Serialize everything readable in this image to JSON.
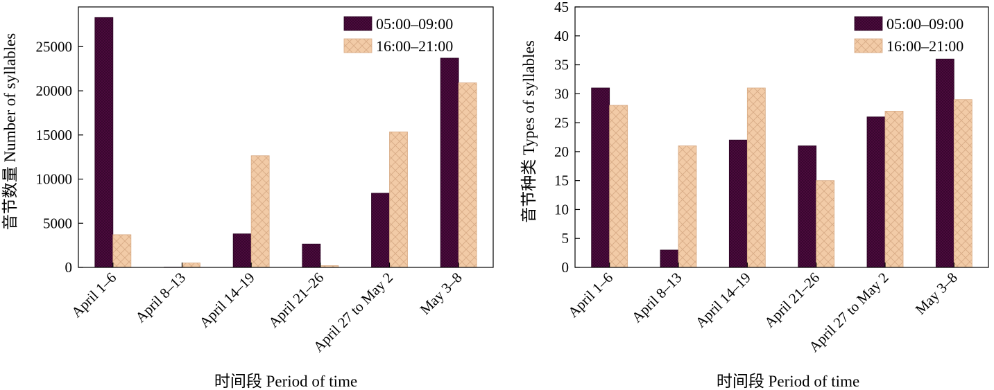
{
  "chart_data": [
    {
      "type": "bar",
      "categories": [
        "April 1–6",
        "April 8–13",
        "April 14–19",
        "April 21–26",
        "April 27 to May 2",
        "May 3–8"
      ],
      "series": [
        {
          "name": "05:00–09:00",
          "values": [
            28300,
            30,
            3800,
            2650,
            8400,
            23700
          ],
          "color": "#4b0a3d"
        },
        {
          "name": "16:00–21:00",
          "values": [
            3700,
            500,
            12650,
            200,
            15350,
            20900
          ],
          "color": "#f2cba7"
        }
      ],
      "xlabel": "时间段 Period of time",
      "ylabel": "音节数量 Number of syllables",
      "ylim": [
        0,
        29500
      ],
      "yticks": [
        0,
        5000,
        10000,
        15000,
        20000,
        25000
      ],
      "legend": "top-right",
      "grid": false
    },
    {
      "type": "bar",
      "categories": [
        "April 1–6",
        "April 8–13",
        "April 14–19",
        "April 21–26",
        "April 27 to May 2",
        "May 3–8"
      ],
      "series": [
        {
          "name": "05:00–09:00",
          "values": [
            31,
            3,
            22,
            21,
            26,
            36
          ],
          "color": "#4b0a3d"
        },
        {
          "name": "16:00–21:00",
          "values": [
            28,
            21,
            31,
            15,
            27,
            29
          ],
          "color": "#f2cba7"
        }
      ],
      "xlabel": "时间段 Period of time",
      "ylabel": "音节种类 Types of syllables",
      "ylim": [
        0,
        45
      ],
      "yticks": [
        0,
        5,
        10,
        15,
        20,
        25,
        30,
        35,
        40,
        45
      ],
      "legend": "top-right",
      "grid": false
    }
  ]
}
